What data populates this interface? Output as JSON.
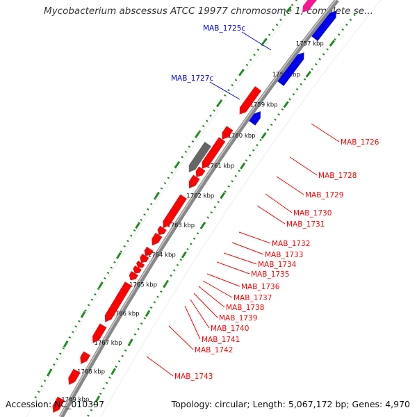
{
  "title": "Mycobacterium abscessus ATCC 19977 chromosome 1, complete se...",
  "footer": {
    "accession": "Accession: NC_010397",
    "summary": "Topology: circular; Length: 5,067,172 bp; Genes: 4,970"
  },
  "colors": {
    "forward": "#ff0000",
    "reverse": "#0000ee",
    "pseudo": "#666666",
    "pink": "#ff1493",
    "tick": "#228b22",
    "backbone": "#888888"
  },
  "ticks": [
    "1757 kbp",
    "1758 kbp",
    "1759 kbp",
    "1760 kbp",
    "1761 kbp",
    "1762 kbp",
    "1763 kbp",
    "1764 kbp",
    "1765 kbp",
    "1766 kbp",
    "1767 kbp",
    "1768 kbp",
    "1769 kbp"
  ],
  "reverse_labels": [
    "MAB_1725c",
    "MAB_1727c"
  ],
  "forward_labels": [
    "MAB_1726",
    "MAB_1728",
    "MAB_1729",
    "MAB_1730",
    "MAB_1731",
    "MAB_1732",
    "MAB_1733",
    "MAB_1734",
    "MAB_1735",
    "MAB_1736",
    "MAB_1737",
    "MAB_1738",
    "MAB_1739",
    "MAB_1740",
    "MAB_1741",
    "MAB_1742",
    "MAB_1743"
  ]
}
